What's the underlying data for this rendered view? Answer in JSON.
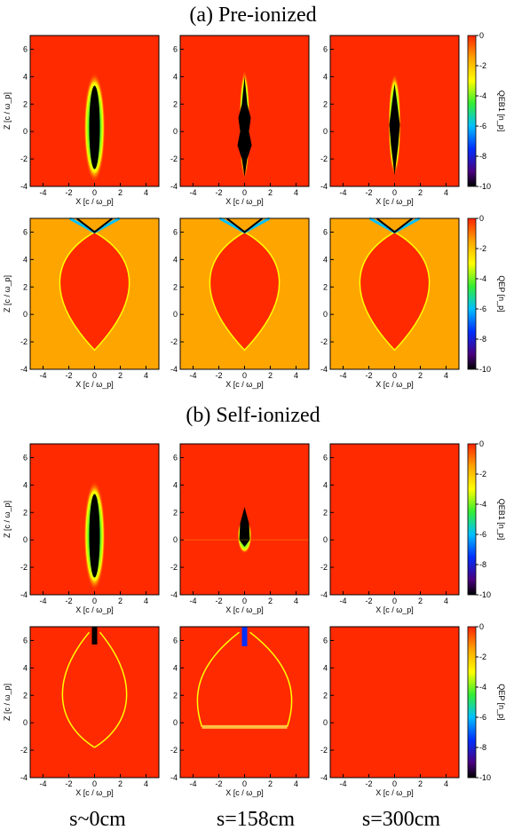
{
  "titles": {
    "a": "(a) Pre-ionized",
    "b": "(b) Self-ionized"
  },
  "bottom_labels": [
    "s~0cm",
    "s=158cm",
    "s=300cm"
  ],
  "colors": {
    "background_field": "#ff2a00",
    "ambient_field": "#ffa500"
  },
  "chart_data": {
    "type": "heatmap",
    "panel_grid": "4 rows x 3 columns",
    "xlabel": "X [c / ω_p]",
    "ylabel": "Z [c / ω_p]",
    "xlim": [
      -5,
      5
    ],
    "ylim": [
      -4,
      7
    ],
    "xticks": [
      -4,
      -2,
      0,
      2,
      4
    ],
    "yticks": [
      -4,
      -2,
      0,
      2,
      4,
      6
    ],
    "colorbar_ticks": [
      0,
      -2,
      -4,
      -6,
      -8,
      -10
    ],
    "colorbar_range": [
      -10,
      0
    ],
    "colorbars": [
      {
        "section": "(a) Pre-ionized",
        "row": "top",
        "label": "QEB1 [n_p]"
      },
      {
        "section": "(a) Pre-ionized",
        "row": "bottom",
        "label": "QEP [n_p]"
      },
      {
        "section": "(b) Self-ionized",
        "row": "top",
        "label": "QEB1 [n_p]"
      },
      {
        "section": "(b) Self-ionized",
        "row": "bottom",
        "label": "QEP [n_p]"
      }
    ],
    "columns": [
      "s~0cm",
      "s=158cm",
      "s=300cm"
    ]
  }
}
